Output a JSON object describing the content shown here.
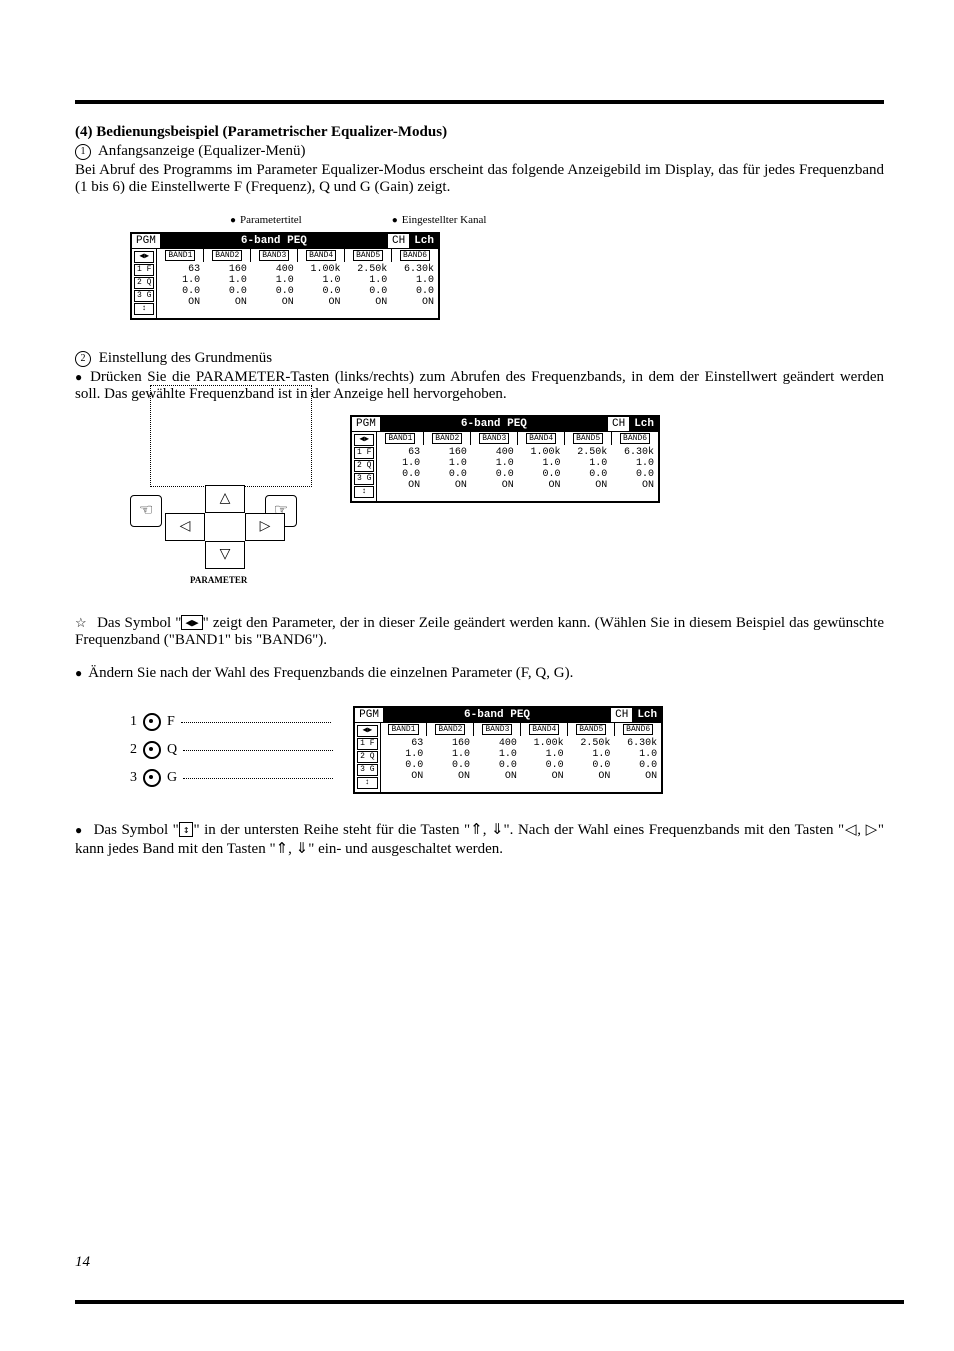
{
  "section": {
    "number": "(4)",
    "title": "Bedienungsbeispiel (Parametrischer Equalizer-Modus)"
  },
  "step1": {
    "num": "1",
    "title": "Anfangsanzeige (Equalizer-Menü)",
    "text": "Bei Abruf des Programms im Parameter Equalizer-Modus erscheint das folgende Anzeigebild im Display, das für jedes Frequenzband (1 bis 6) die Einstellwerte F (Frequenz), Q und G (Gain) zeigt."
  },
  "annot": {
    "left": "Parametertitel",
    "right": "Eingestellter Kanal"
  },
  "lcd": {
    "pgm": "PGM",
    "title": "6-band PEQ",
    "ch": "CH",
    "chval": "Lch",
    "side": [
      "◀▶",
      "1 F",
      "2 Q",
      "3 G",
      "↕"
    ],
    "bands": [
      "BAND1",
      "BAND2",
      "BAND3",
      "BAND4",
      "BAND5",
      "BAND6"
    ],
    "rows": {
      "f": [
        "63",
        "160",
        "400",
        "1.00k",
        "2.50k",
        "6.30k"
      ],
      "q": [
        "1.0",
        "1.0",
        "1.0",
        "1.0",
        "1.0",
        "1.0"
      ],
      "g": [
        "0.0",
        "0.0",
        "0.0",
        "0.0",
        "0.0",
        "0.0"
      ],
      "on": [
        "ON",
        "ON",
        "ON",
        "ON",
        "ON",
        "ON"
      ]
    }
  },
  "step2": {
    "num": "2",
    "title": "Einstellung des Grundmenüs",
    "bullet1": "Drücken Sie die PARAMETER-Tasten (links/rechts) zum Abrufen des Frequenzbands, in dem der Einstellwert geändert werden soll. Das gewählte Frequenzband ist in der Anzeige hell hervorgehoben."
  },
  "dpad_label": "PARAMETER",
  "star_text_a": "Das Symbol \"",
  "star_text_b": "\" zeigt den Parameter, der in dieser Zeile geändert werden kann. (Wählen Sie in diesem Beispiel das gewünschte Frequenzband (\"BAND1\" bis \"BAND6\").",
  "star_symbol": "◀▶",
  "bullet2": "Ändern Sie nach der Wahl des Frequenzbands die einzelnen Parameter (F, Q, G).",
  "knobs": [
    {
      "n": "1",
      "l": "F"
    },
    {
      "n": "2",
      "l": "Q"
    },
    {
      "n": "3",
      "l": "G"
    }
  ],
  "bottom_a": "Das Symbol \"",
  "bottom_sym": "↕",
  "bottom_b": "\" in der untersten Reihe steht für die Tasten \"⇑, ⇓\". Nach der Wahl eines Frequenzbands mit den Tasten \"◁, ▷\" kann jedes Band mit den Tasten \"⇑, ⇓\" ein- und ausgeschaltet werden.",
  "pagenum": "14"
}
